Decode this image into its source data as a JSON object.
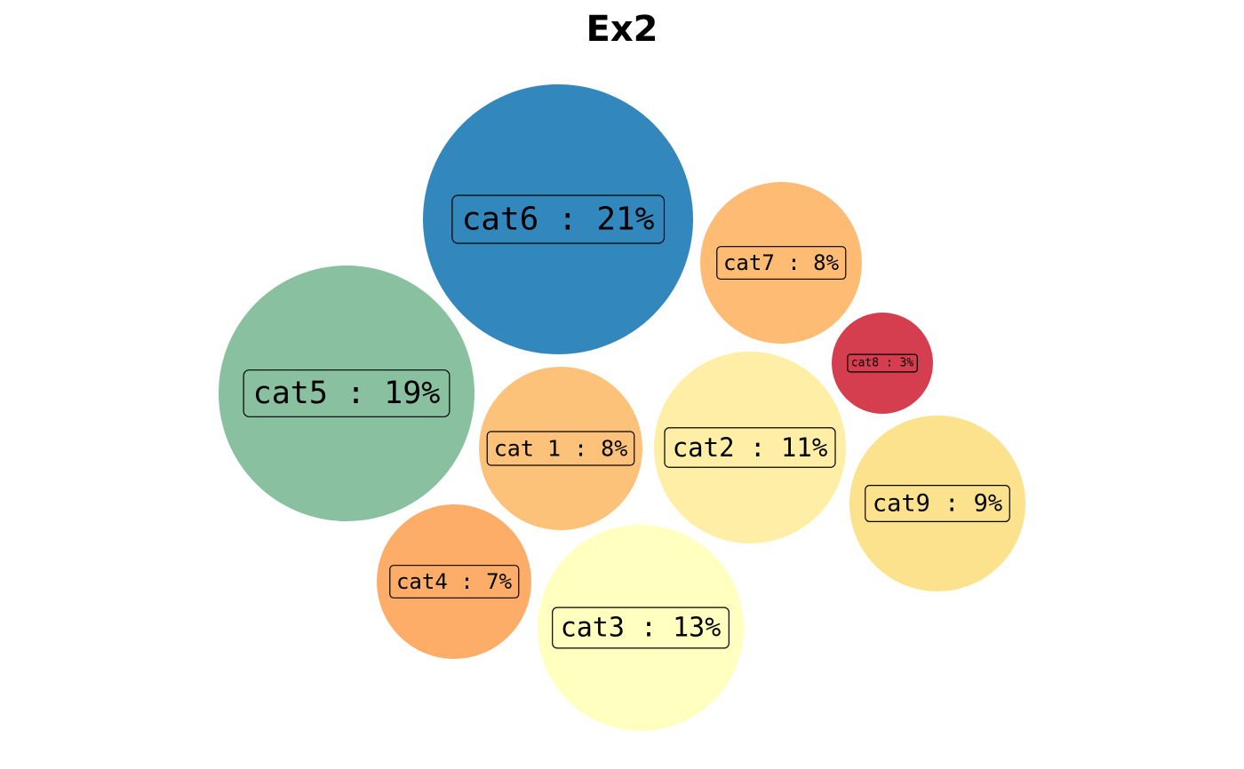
{
  "chart_data": {
    "type": "bubble",
    "title": "Ex2",
    "bubbles": [
      {
        "category": "cat6",
        "percent": 21,
        "label": "cat6 : 21%",
        "color": "#3288bd"
      },
      {
        "category": "cat5",
        "percent": 19,
        "label": "cat5 : 19%",
        "color": "#88c0a0"
      },
      {
        "category": "cat3",
        "percent": 13,
        "label": "cat3 : 13%",
        "color": "#ffffbf"
      },
      {
        "category": "cat2",
        "percent": 11,
        "label": "cat2 : 11%",
        "color": "#ffeea5"
      },
      {
        "category": "cat9",
        "percent": 9,
        "label": "cat9 : 9%",
        "color": "#fde28d"
      },
      {
        "category": "cat7",
        "percent": 8,
        "label": "cat7 : 8%",
        "color": "#fdbb73"
      },
      {
        "category": "cat 1",
        "percent": 8,
        "label": "cat 1 : 8%",
        "color": "#fdc27a"
      },
      {
        "category": "cat4",
        "percent": 7,
        "label": "cat4 : 7%",
        "color": "#fdad68"
      },
      {
        "category": "cat8",
        "percent": 3,
        "label": "cat8 : 3%",
        "color": "#d53e4f"
      }
    ]
  }
}
